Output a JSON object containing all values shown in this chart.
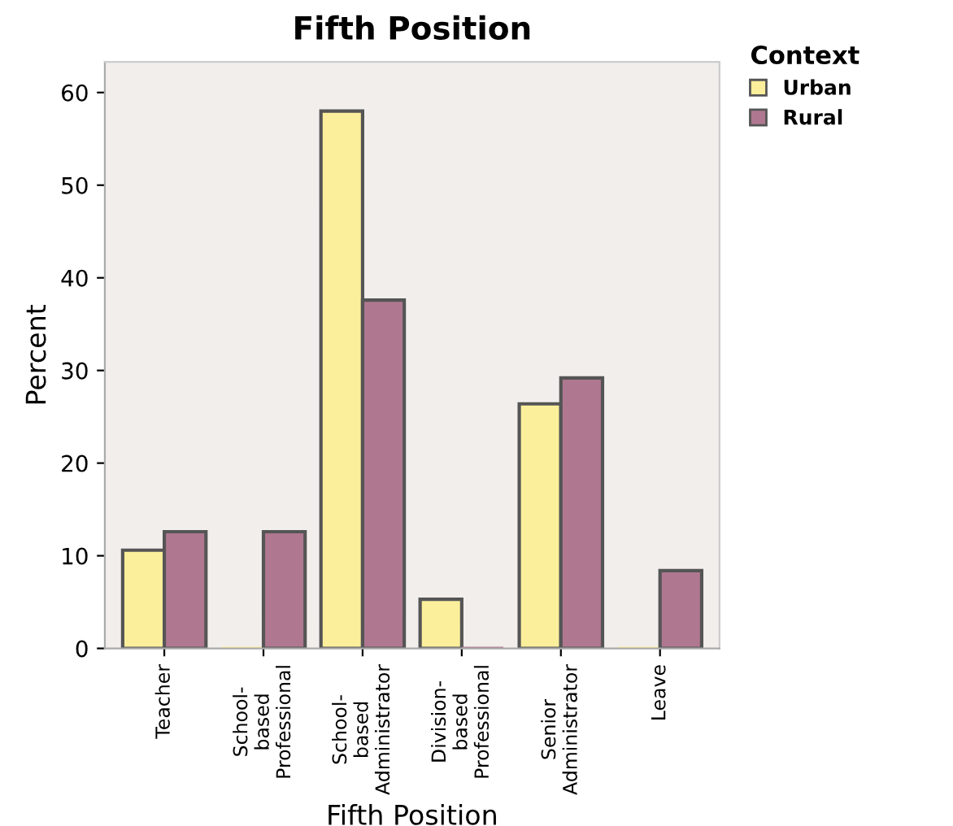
{
  "chart_data": {
    "type": "bar",
    "title": "Fifth Position",
    "xlabel": "Fifth Position",
    "ylabel": "Percent",
    "legend_title": "Context",
    "categories": [
      "Teacher",
      "School-\nbased\nProfessional",
      "School-\nbased\nAdministrator",
      "Division-\nbased\nProfessional",
      "Senior\nAdministrator",
      "Leave"
    ],
    "series": [
      {
        "name": "Urban",
        "color": "#fcef9c",
        "values": [
          10.6,
          0,
          58.0,
          5.3,
          26.4,
          0
        ]
      },
      {
        "name": "Rural",
        "color": "#b07890",
        "values": [
          12.6,
          12.6,
          37.6,
          0,
          29.2,
          8.4
        ]
      }
    ],
    "ylim": [
      0,
      63.3
    ],
    "yticks": [
      0,
      10,
      20,
      30,
      40,
      50,
      60
    ],
    "grid": false,
    "legend": "top right"
  }
}
